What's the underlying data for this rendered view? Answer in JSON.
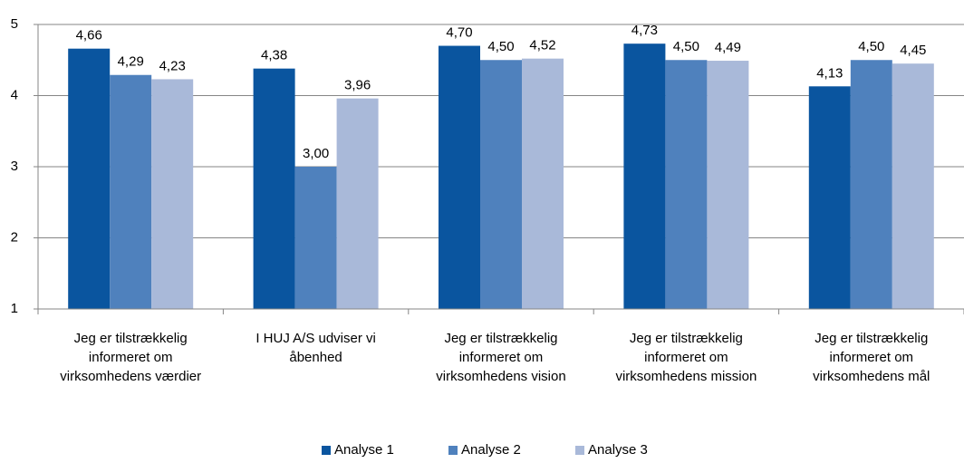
{
  "chart_data": {
    "type": "bar",
    "categories": [
      "Jeg er tilstrækkelig informeret om virksomhedens værdier",
      "I HUJ A/S udviser vi åbenhed",
      "Jeg er tilstrækkelig informeret om virksomhedens vision",
      "Jeg er tilstrækkelig informeret om virksomhedens mission",
      "Jeg er tilstrækkelig informeret om virksomhedens mål"
    ],
    "series": [
      {
        "name": "Analyse 1",
        "color": "#0a559f",
        "values": [
          4.66,
          4.38,
          4.7,
          4.73,
          4.13
        ],
        "value_labels": [
          "4,66",
          "4,38",
          "4,70",
          "4,73",
          "4,13"
        ]
      },
      {
        "name": "Analyse 2",
        "color": "#4f81bd",
        "values": [
          4.29,
          3.0,
          4.5,
          4.5,
          4.5
        ],
        "value_labels": [
          "4,29",
          "3,00",
          "4,50",
          "4,50",
          "4,50"
        ]
      },
      {
        "name": "Analyse 3",
        "color": "#a9b9d9",
        "values": [
          4.23,
          3.96,
          4.52,
          4.49,
          4.45
        ],
        "value_labels": [
          "4,23",
          "3,96",
          "4,52",
          "4,49",
          "4,45"
        ]
      }
    ],
    "ylim": [
      1,
      5
    ],
    "yticks": [
      1,
      2,
      3,
      4,
      5
    ],
    "grid": true,
    "legend": "bottom"
  }
}
